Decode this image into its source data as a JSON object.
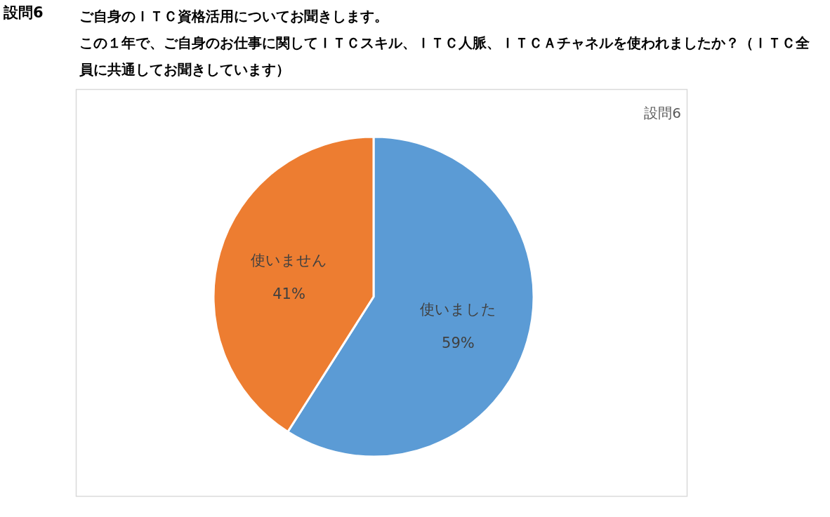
{
  "chart_data": {
    "type": "pie",
    "title": "設問6",
    "subtitle": "ご自身のＩＴＣ資格活用についてお聞きします。",
    "annotations": [
      "この１年で、ご自身のお仕事に関してＩＴＣスキル、ＩＴＣ人脈、ＩＴＣＡチャネルを使われましたか？（ＩＴＣ全員に共通してお聞きしています）",
      "設問6"
    ],
    "categories": [
      "使いました",
      "使いません"
    ],
    "values": [
      59,
      41
    ],
    "value_labels": [
      "59%",
      "41%"
    ],
    "colors": [
      "#5b9bd5",
      "#ed7d31"
    ],
    "legend": false
  }
}
